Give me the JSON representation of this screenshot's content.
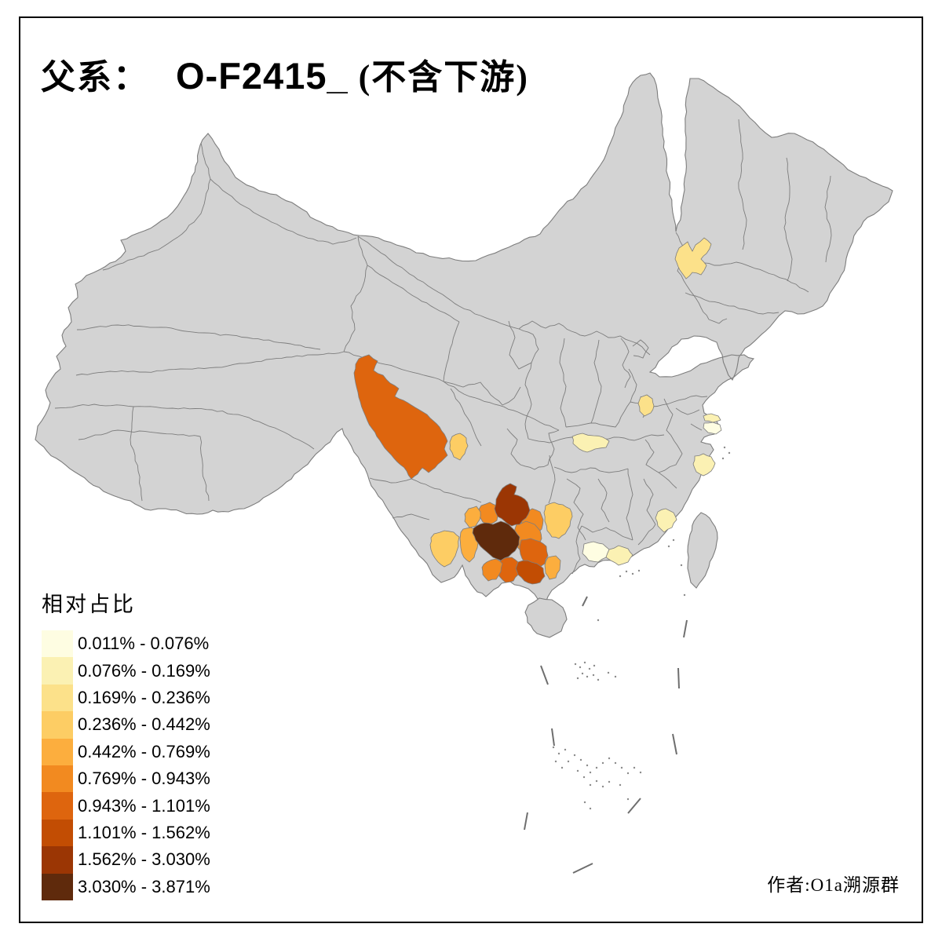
{
  "title": {
    "prefix": "父系：",
    "code": "O-F2415_",
    "suffix": " (不含下游)"
  },
  "legend": {
    "title": "相对占比",
    "items": [
      {
        "label": "0.011% - 0.076%",
        "color": "#FEFDE2"
      },
      {
        "label": "0.076% - 0.169%",
        "color": "#FBF1B3"
      },
      {
        "label": "0.169% - 0.236%",
        "color": "#FCE18A"
      },
      {
        "label": "0.236% - 0.442%",
        "color": "#FDCD64"
      },
      {
        "label": "0.442% - 0.769%",
        "color": "#FCAE3E"
      },
      {
        "label": "0.769% - 0.943%",
        "color": "#F28A20"
      },
      {
        "label": "0.943% - 1.101%",
        "color": "#DE650E"
      },
      {
        "label": "1.101% - 1.562%",
        "color": "#C24D03"
      },
      {
        "label": "1.562% - 3.030%",
        "color": "#9B3604"
      },
      {
        "label": "3.030% - 3.871%",
        "color": "#5F2A0C"
      }
    ]
  },
  "attribution": {
    "text": "作者:O1a溯源群"
  },
  "map": {
    "land_color": "#D3D3D3",
    "border_color": "#7D7D7D",
    "sea_color": "#FFFFFF",
    "frame_color": "#000000",
    "dash_line_color": "#6E6E6E"
  },
  "palette": {
    "c1": "#FEFDE2",
    "c2": "#FBF1B3",
    "c3": "#FCE18A",
    "c4": "#FDCD64",
    "c5": "#FCAE3E",
    "c6": "#F28A20",
    "c7": "#DE650E",
    "c8": "#C24D03",
    "c9": "#9B3604",
    "c10": "#5F2A0C"
  }
}
